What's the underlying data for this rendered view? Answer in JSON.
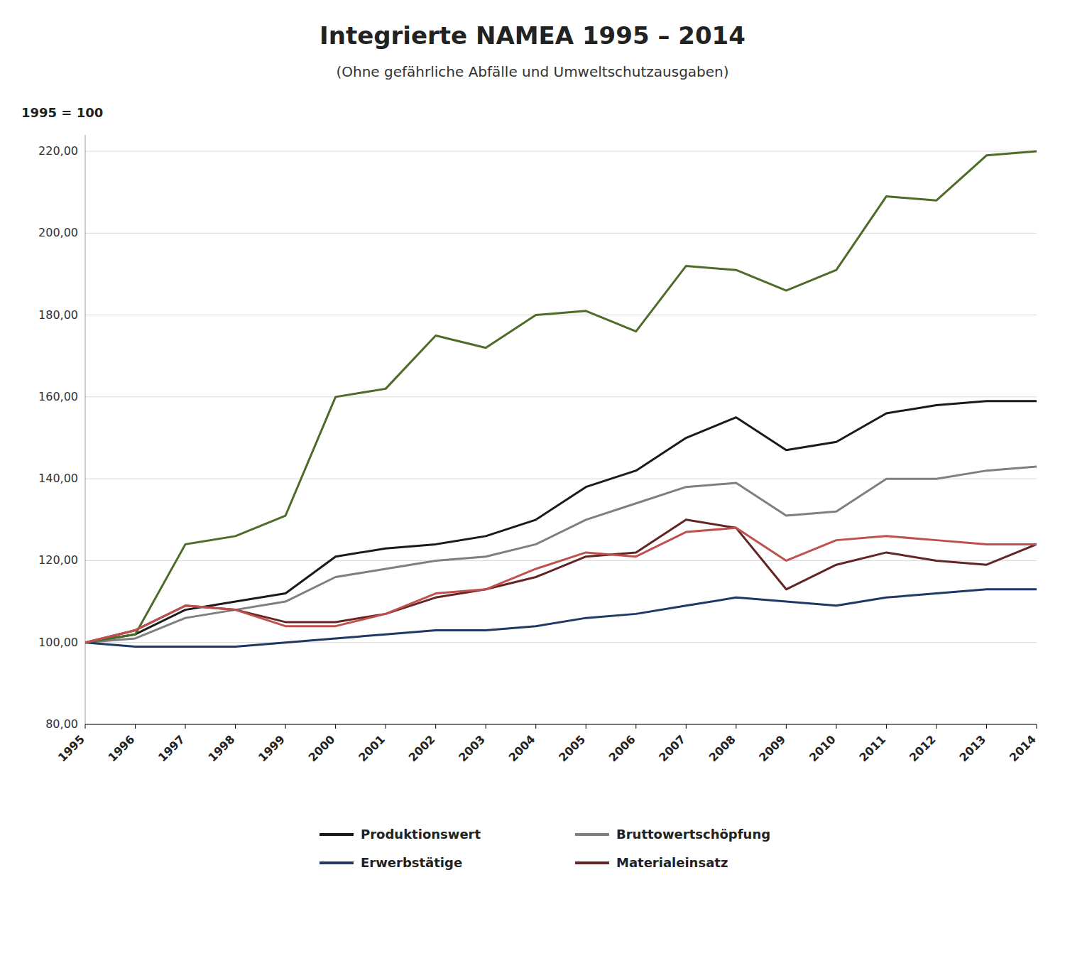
{
  "chart_data": {
    "type": "line",
    "title": "Integrierte NAMEA 1995 – 2014",
    "subtitle": "(Ohne gefährliche Abfälle und Umweltschutzausgaben)",
    "ylabel": "1995 = 100",
    "x": [
      1995,
      1996,
      1997,
      1998,
      1999,
      2000,
      2001,
      2002,
      2003,
      2004,
      2005,
      2006,
      2007,
      2008,
      2009,
      2010,
      2011,
      2012,
      2013,
      2014
    ],
    "xlim": [
      1995,
      2014
    ],
    "xticks": [
      1995,
      1996,
      1997,
      1998,
      1999,
      2000,
      2001,
      2002,
      2003,
      2004,
      2005,
      2006,
      2007,
      2008,
      2009,
      2010,
      2011,
      2012,
      2013,
      2014
    ],
    "ylim": [
      80,
      224
    ],
    "yticks": [
      {
        "value": 80,
        "label": "80,00"
      },
      {
        "value": 100,
        "label": "100,00"
      },
      {
        "value": 120,
        "label": "120,00"
      },
      {
        "value": 140,
        "label": "140,00"
      },
      {
        "value": 160,
        "label": "160,00"
      },
      {
        "value": 180,
        "label": "180,00"
      },
      {
        "value": 200,
        "label": "200,00"
      },
      {
        "value": 220,
        "label": "220,00"
      }
    ],
    "grid": true,
    "legend": "bottom",
    "series": [
      {
        "name": "Produktionswert",
        "color": "#1a1a1a",
        "values": [
          100,
          102,
          108,
          110,
          112,
          121,
          123,
          124,
          126,
          130,
          138,
          142,
          150,
          155,
          147,
          149,
          156,
          158,
          159,
          159
        ]
      },
      {
        "name": "Bruttowertschöpfung",
        "color": "#7f7f7f",
        "values": [
          100,
          101,
          106,
          108,
          110,
          116,
          118,
          120,
          121,
          124,
          130,
          134,
          138,
          139,
          131,
          132,
          140,
          140,
          142,
          143
        ]
      },
      {
        "name": "Erwerbstätige",
        "color": "#1f3864",
        "values": [
          100,
          99,
          99,
          99,
          100,
          101,
          102,
          103,
          103,
          104,
          106,
          107,
          109,
          111,
          110,
          109,
          111,
          112,
          113,
          113
        ]
      },
      {
        "name": "Materialeinsatz",
        "color": "#632523",
        "values": [
          100,
          103,
          109,
          108,
          105,
          105,
          107,
          111,
          113,
          116,
          121,
          122,
          130,
          128,
          113,
          119,
          122,
          120,
          119,
          124
        ]
      },
      {
        "color": "#4e6b2a",
        "values": [
          100,
          102,
          124,
          126,
          131,
          160,
          162,
          175,
          172,
          180,
          181,
          176,
          192,
          191,
          186,
          191,
          209,
          208,
          219,
          220
        ]
      },
      {
        "color": "#c0504d",
        "values": [
          100,
          103,
          109,
          108,
          104,
          104,
          107,
          112,
          113,
          118,
          122,
          121,
          127,
          128,
          120,
          125,
          126,
          125,
          124,
          124
        ]
      }
    ]
  }
}
